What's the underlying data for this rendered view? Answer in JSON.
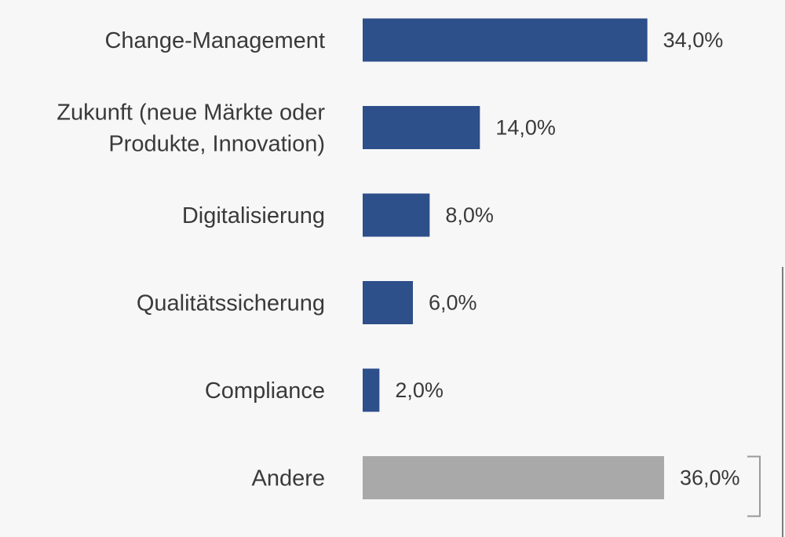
{
  "chart_data": {
    "type": "bar",
    "orientation": "horizontal",
    "categories": [
      [
        "Change-Management"
      ],
      [
        "Zukunft (neue Märkte oder",
        "Produkte, Innovation)"
      ],
      [
        "Digitalisierung"
      ],
      [
        "Qualitätssicherung"
      ],
      [
        "Compliance"
      ],
      [
        "Andere"
      ]
    ],
    "values": [
      34.0,
      14.0,
      8.0,
      6.0,
      2.0,
      36.0
    ],
    "value_labels": [
      "34,0%",
      "14,0%",
      "8,0%",
      "6,0%",
      "2,0%",
      "36,0%"
    ],
    "unit": "%",
    "xlim": [
      0,
      36
    ],
    "grid": false,
    "colors": {
      "primary": "#2d4f8a",
      "other": "#a9a9a9",
      "bracket": "#9a9a9a",
      "text": "#3a3a3a"
    },
    "highlight_colors": [
      "#2d4f8a",
      "#2d4f8a",
      "#2d4f8a",
      "#2d4f8a",
      "#2d4f8a",
      "#a9a9a9"
    ]
  }
}
